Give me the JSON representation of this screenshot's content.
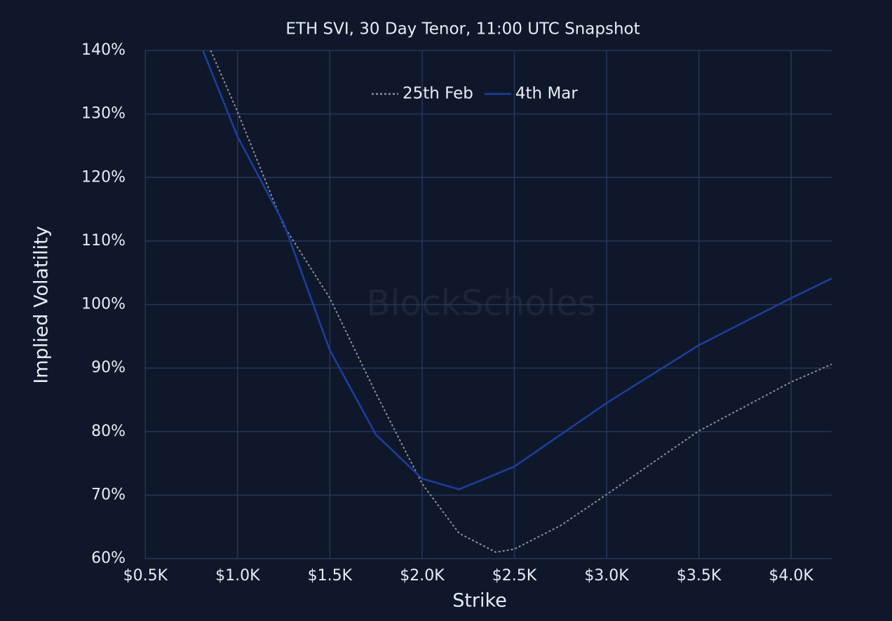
{
  "chart_data": {
    "type": "line",
    "title": "ETH SVI, 30 Day Tenor, 11:00 UTC Snapshot",
    "x_label": "Strike",
    "y_label": "Implied Volatility",
    "watermark": "BlockScholes",
    "legend": "top",
    "grid": true,
    "xlim": [
      400,
      4220
    ],
    "ylim": [
      60,
      140
    ],
    "xticks": [
      {
        "value": 500,
        "label": "$0.5K"
      },
      {
        "value": 1000,
        "label": "$1.0K"
      },
      {
        "value": 1500,
        "label": "$1.5K"
      },
      {
        "value": 2000,
        "label": "$2.0K"
      },
      {
        "value": 2500,
        "label": "$2.5K"
      },
      {
        "value": 3000,
        "label": "$3.0K"
      },
      {
        "value": 3500,
        "label": "$3.5K"
      },
      {
        "value": 4000,
        "label": "$4.0K"
      }
    ],
    "yticks": [
      {
        "value": 60,
        "label": "60%"
      },
      {
        "value": 70,
        "label": "70%"
      },
      {
        "value": 80,
        "label": "80%"
      },
      {
        "value": 90,
        "label": "90%"
      },
      {
        "value": 100,
        "label": "100%"
      },
      {
        "value": 110,
        "label": "110%"
      },
      {
        "value": 120,
        "label": "120%"
      },
      {
        "value": 130,
        "label": "130%"
      },
      {
        "value": 140,
        "label": "140%"
      }
    ],
    "series": [
      {
        "name": "25th Feb",
        "color": "#8a8f99",
        "dash": "dotted",
        "x": [
          854,
          1000,
          1250,
          1500,
          1750,
          2000,
          2200,
          2400,
          2500,
          2750,
          3000,
          3500,
          4000,
          4220
        ],
        "values": [
          140,
          130.3,
          112.4,
          101,
          86,
          71.8,
          64,
          61,
          61.5,
          65.2,
          70.1,
          80.1,
          87.8,
          90.6
        ]
      },
      {
        "name": "4th Mar",
        "color": "#1c3f9e",
        "dash": "solid",
        "x": [
          812,
          1000,
          1250,
          1500,
          1750,
          2000,
          2200,
          2500,
          3000,
          3500,
          4000,
          4220
        ],
        "values": [
          140,
          126.4,
          112.8,
          92.8,
          79.5,
          72.6,
          70.9,
          74.5,
          84.5,
          93.6,
          101,
          104.1
        ]
      }
    ]
  }
}
